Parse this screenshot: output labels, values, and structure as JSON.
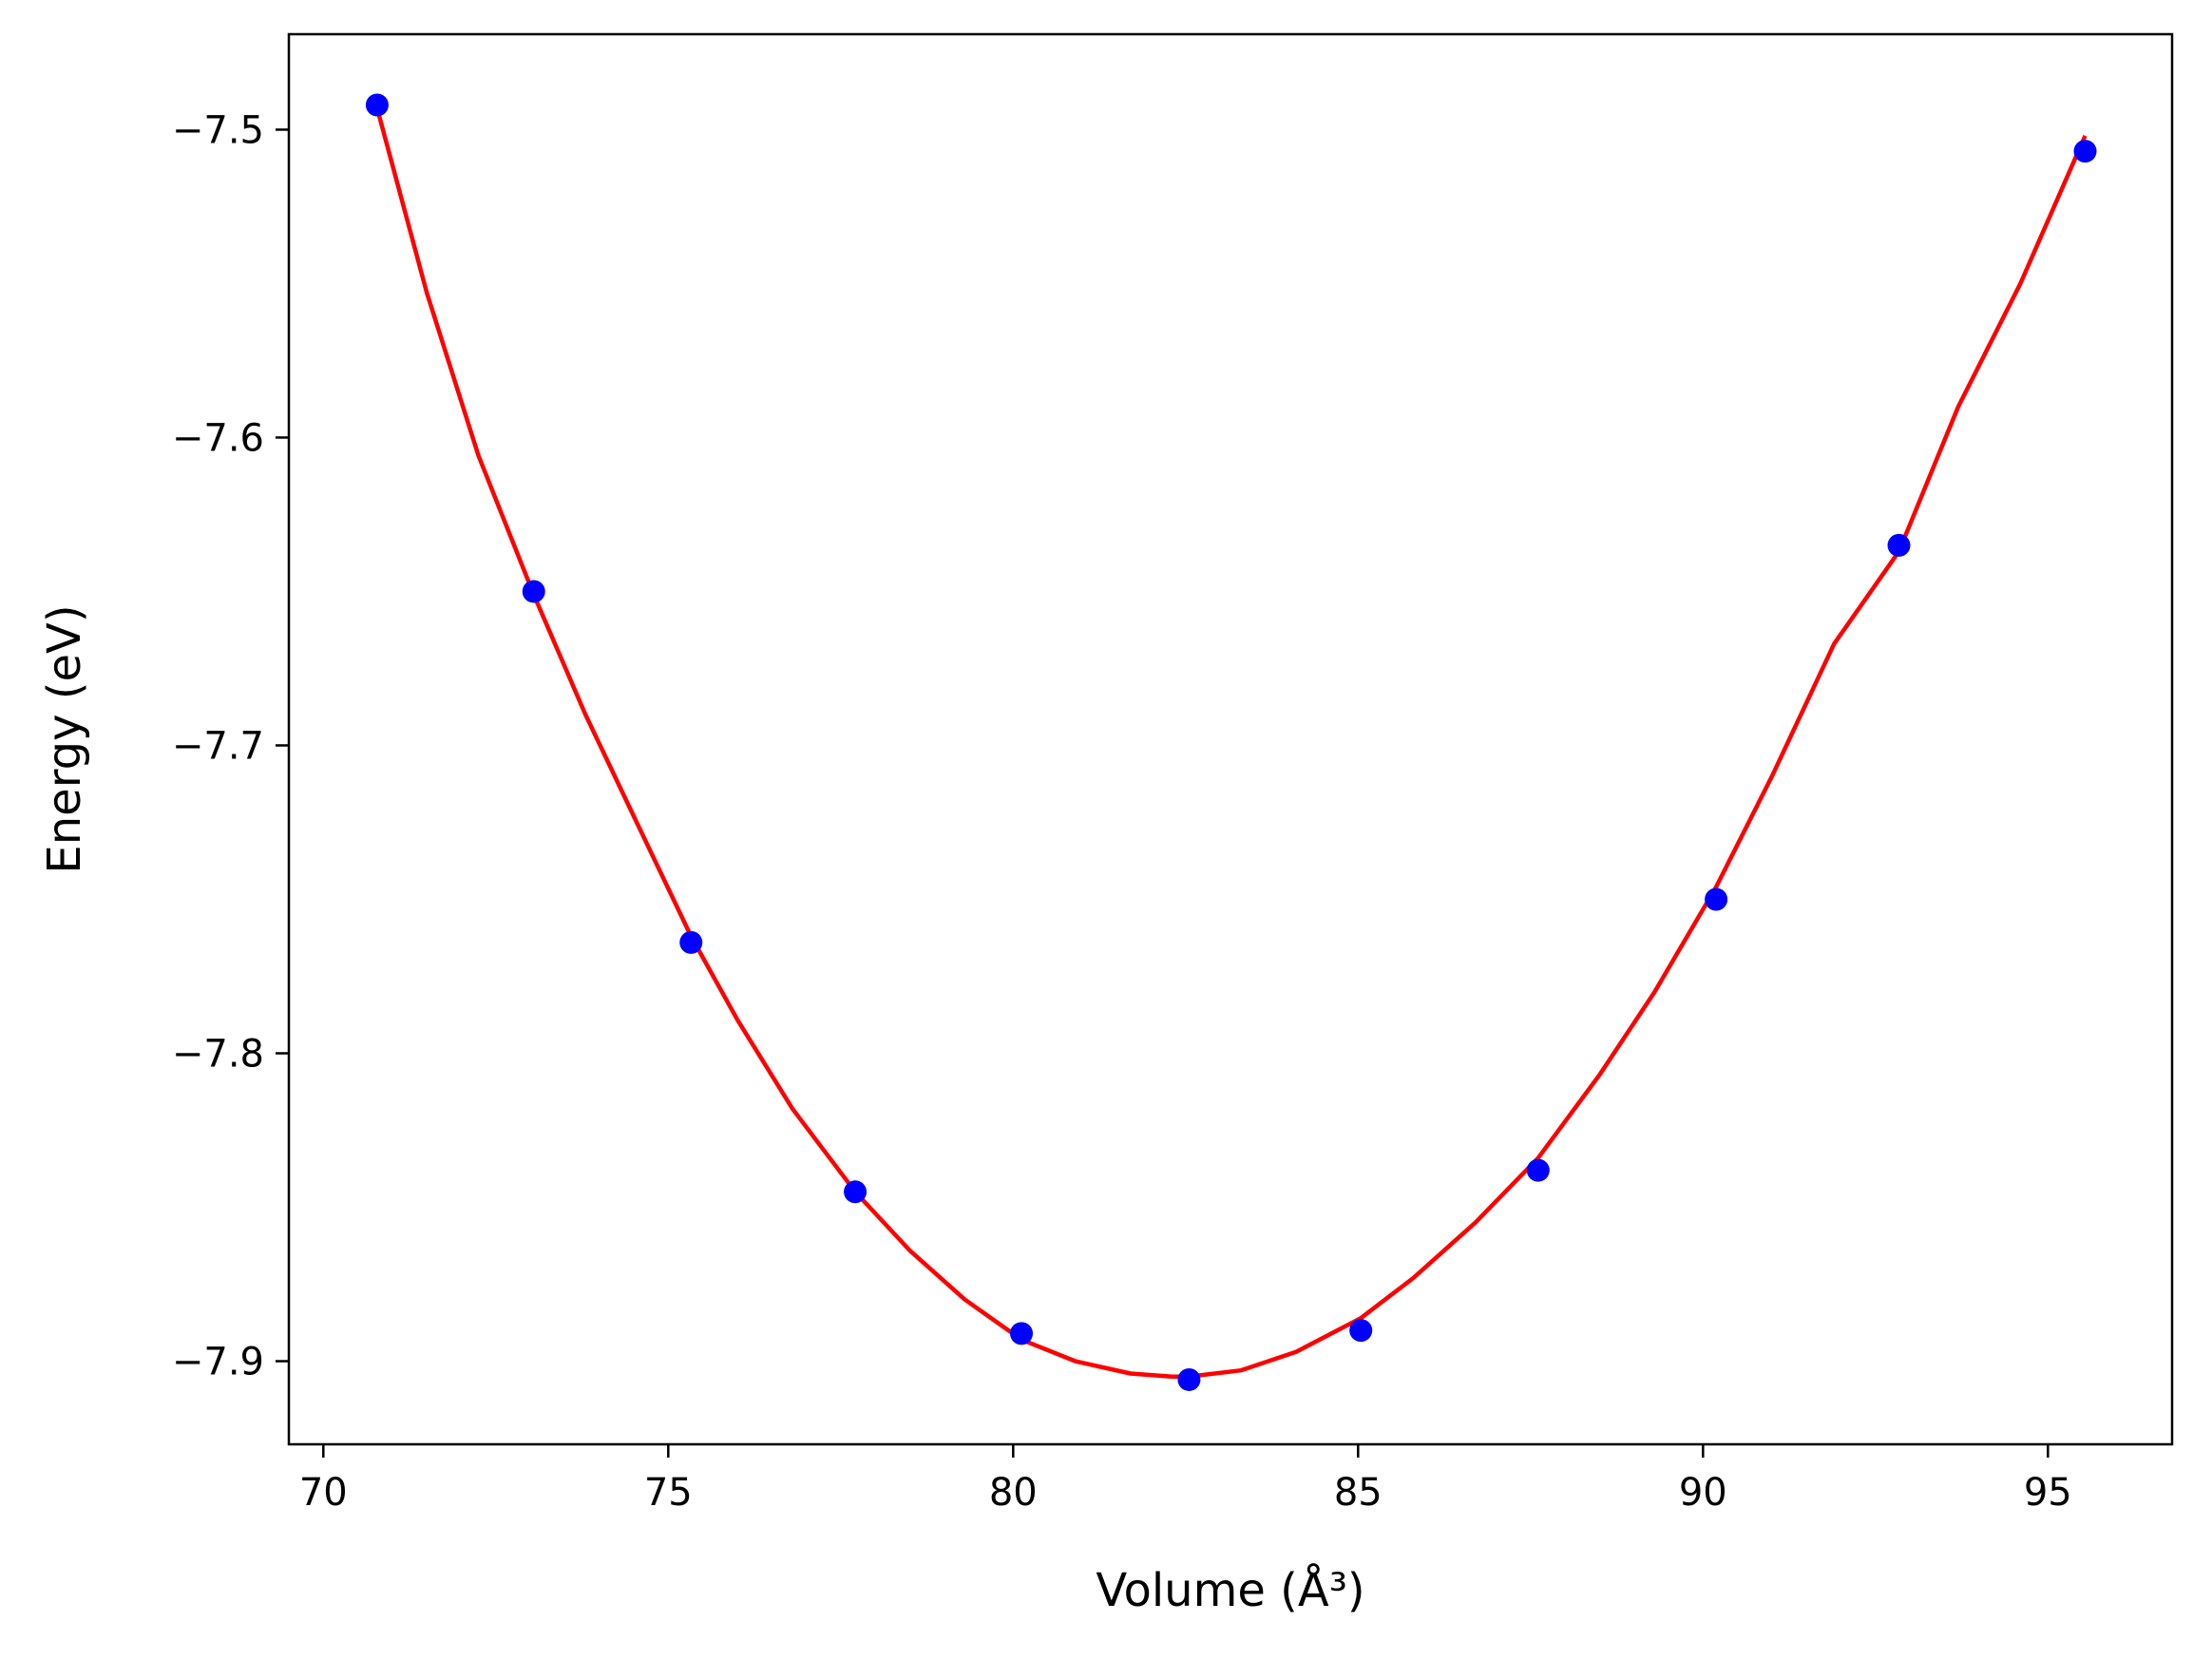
{
  "chart_data": {
    "type": "scatter",
    "xlabel": "Volume (Å³)",
    "ylabel": "Energy (eV)",
    "xlim": [
      69.5,
      96.8
    ],
    "ylim": [
      -7.927,
      -7.469
    ],
    "x_ticks": [
      70,
      75,
      80,
      85,
      90,
      95
    ],
    "x_tick_labels": [
      "70",
      "75",
      "80",
      "85",
      "90",
      "95"
    ],
    "y_ticks": [
      -7.5,
      -7.6,
      -7.7,
      -7.8,
      -7.9
    ],
    "y_tick_labels": [
      "−7.5",
      "−7.6",
      "−7.7",
      "−7.8",
      "−7.9"
    ],
    "grid": false,
    "series": [
      {
        "kind": "points",
        "color": "#0000ff",
        "x": [
          70.78,
          73.05,
          75.33,
          77.71,
          80.12,
          82.55,
          85.04,
          87.61,
          90.19,
          92.84,
          95.54
        ],
        "y": [
          -7.492,
          -7.65,
          -7.764,
          -7.845,
          -7.891,
          -7.906,
          -7.89,
          -7.838,
          -7.75,
          -7.635,
          -7.507
        ]
      },
      {
        "kind": "fit-curve",
        "color": "#ff0000",
        "x": [
          70.78,
          71.5,
          72.25,
          73.05,
          73.8,
          74.5,
          75.33,
          76.0,
          76.8,
          77.71,
          78.5,
          79.3,
          80.12,
          80.9,
          81.7,
          82.3,
          82.55,
          83.3,
          84.1,
          85.04,
          85.8,
          86.7,
          87.61,
          88.5,
          89.3,
          90.19,
          91.0,
          91.9,
          92.84,
          93.7,
          94.6,
          95.54
        ],
        "y": [
          -7.493,
          -7.553,
          -7.606,
          -7.651,
          -7.69,
          -7.723,
          -7.762,
          -7.789,
          -7.818,
          -7.845,
          -7.864,
          -7.88,
          -7.893,
          -7.9,
          -7.904,
          -7.905,
          -7.905,
          -7.903,
          -7.897,
          -7.886,
          -7.873,
          -7.855,
          -7.834,
          -7.807,
          -7.78,
          -7.746,
          -7.71,
          -7.667,
          -7.637,
          -7.59,
          -7.55,
          -7.502
        ]
      }
    ]
  }
}
